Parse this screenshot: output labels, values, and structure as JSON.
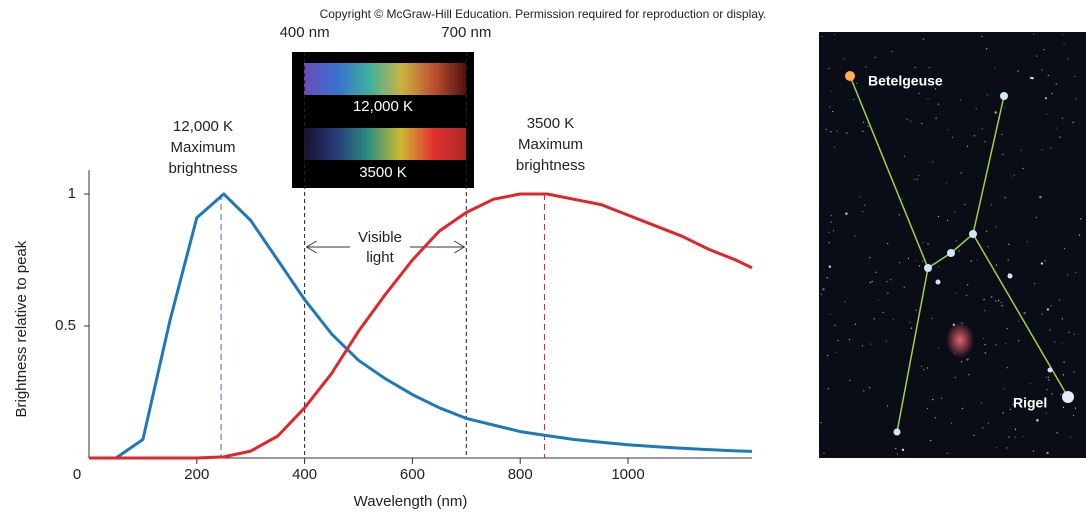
{
  "copyright": "Copyright © McGraw-Hill Education. Permission required for reproduction or display.",
  "chart_data": {
    "type": "line",
    "xlabel": "Wavelength (nm)",
    "ylabel": "Brightness relative to peak",
    "x": [
      0,
      50,
      100,
      150,
      200,
      250,
      300,
      350,
      400,
      450,
      500,
      550,
      600,
      650,
      700,
      750,
      800,
      850,
      900,
      950,
      1000,
      1050,
      1100,
      1150,
      1200,
      1230
    ],
    "series": [
      {
        "name": "12,000 K",
        "color": "#1f78b8",
        "values": [
          0,
          0,
          0.07,
          0.52,
          0.91,
          1.0,
          0.9,
          0.75,
          0.6,
          0.47,
          0.37,
          0.3,
          0.24,
          0.19,
          0.15,
          0.125,
          0.1,
          0.085,
          0.07,
          0.06,
          0.05,
          0.043,
          0.037,
          0.032,
          0.027,
          0.025
        ]
      },
      {
        "name": "3500 K",
        "color": "#e0252d",
        "values": [
          0,
          0,
          0,
          0,
          0,
          0.004,
          0.026,
          0.083,
          0.19,
          0.32,
          0.48,
          0.62,
          0.75,
          0.86,
          0.93,
          0.98,
          1.0,
          1.0,
          0.98,
          0.96,
          0.92,
          0.88,
          0.84,
          0.79,
          0.75,
          0.72
        ]
      }
    ],
    "xlim": [
      0,
      1230
    ],
    "ylim": [
      0,
      1.09
    ],
    "xticks": [
      0,
      200,
      400,
      600,
      800,
      1000
    ],
    "yticks": [
      0.5,
      1
    ],
    "annotations": [
      {
        "x": 245,
        "color": "#3b6fb6",
        "text": [
          "12,000 K",
          "Maximum",
          "brightness"
        ]
      },
      {
        "x": 845,
        "color": "#e0252d",
        "text": [
          "3500 K",
          "Maximum",
          "brightness"
        ]
      }
    ],
    "visible_range": [
      {
        "value": 400,
        "label": "400 nm"
      },
      {
        "value": 700,
        "label": "700 nm"
      }
    ],
    "visible_label": [
      "Visible",
      "light"
    ],
    "spectra": [
      "12,000 K",
      "3500 K"
    ]
  },
  "photo": {
    "labels": [
      "Betelgeuse",
      "Rigel"
    ]
  }
}
